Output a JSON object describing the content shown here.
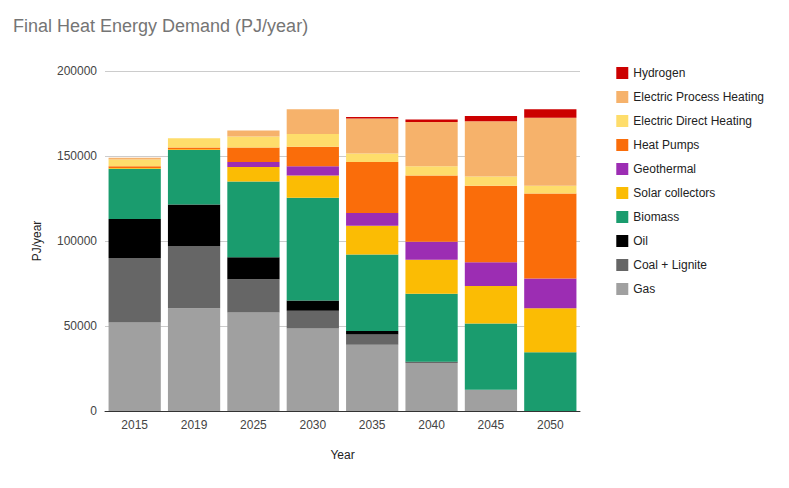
{
  "chart_data": {
    "type": "bar",
    "title": "Final Heat Energy Demand (PJ/year)",
    "x_label": "Year",
    "y_label": "PJ/year",
    "categories": [
      "2015",
      "2019",
      "2025",
      "2030",
      "2035",
      "2040",
      "2045",
      "2050"
    ],
    "stacked": true,
    "grid": true,
    "legend": "right",
    "ylim": [
      0,
      200000
    ],
    "yticks": [
      0,
      50000,
      100000,
      150000,
      200000
    ],
    "series": [
      {
        "name": "Gas",
        "color": "#a0a0a0",
        "values": [
          52000,
          60500,
          58000,
          48500,
          39000,
          28500,
          12500,
          0
        ]
      },
      {
        "name": "Coal + Lignite",
        "color": "#666666",
        "values": [
          38000,
          36500,
          19500,
          10500,
          6000,
          0,
          0,
          0
        ]
      },
      {
        "name": "Oil",
        "color": "#000000",
        "values": [
          23000,
          24500,
          13000,
          6000,
          2000,
          500,
          0,
          0
        ]
      },
      {
        "name": "Biomass",
        "color": "#1a9c6e",
        "values": [
          29500,
          32000,
          44500,
          60500,
          45000,
          40000,
          39000,
          34500
        ]
      },
      {
        "name": "Solar collectors",
        "color": "#fbbc04",
        "values": [
          500,
          500,
          8500,
          13000,
          17000,
          20000,
          22000,
          26000
        ]
      },
      {
        "name": "Geothermal",
        "color": "#9c2db3",
        "values": [
          0,
          0,
          3000,
          5500,
          7500,
          10500,
          14000,
          17500
        ]
      },
      {
        "name": "Heat Pumps",
        "color": "#fa6d0a",
        "values": [
          1000,
          1000,
          8500,
          11500,
          30000,
          39000,
          45000,
          50000
        ]
      },
      {
        "name": "Electric Direct Heating",
        "color": "#fedd6b",
        "values": [
          4000,
          5500,
          6500,
          7500,
          5000,
          5500,
          5500,
          4500
        ]
      },
      {
        "name": "Electric Process Heating",
        "color": "#f6b26b",
        "values": [
          1000,
          0,
          3500,
          14500,
          20500,
          26000,
          32500,
          40000
        ]
      },
      {
        "name": "Hydrogen",
        "color": "#cc0000",
        "values": [
          0,
          0,
          0,
          0,
          1000,
          1500,
          3000,
          5000
        ]
      }
    ]
  }
}
